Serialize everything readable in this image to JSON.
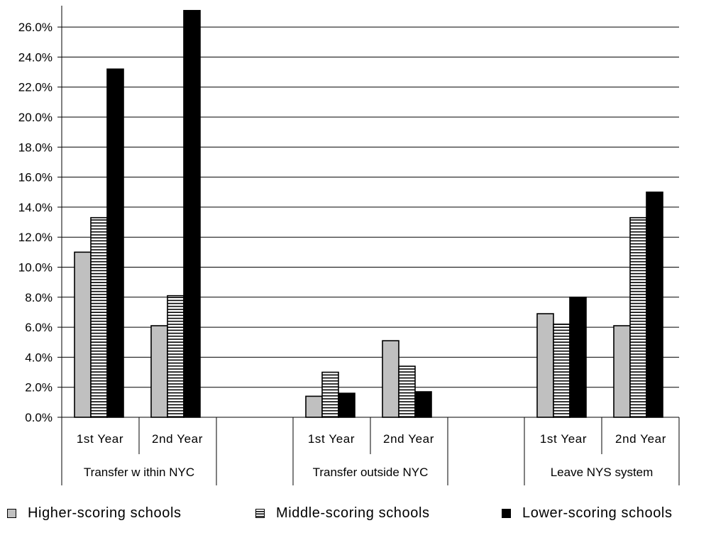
{
  "chart_data": {
    "type": "bar",
    "groups": [
      {
        "label": "Transfer w ithin NYC",
        "subcategories": [
          "1st Year",
          "2nd Year"
        ]
      },
      {
        "label": "Transfer outside NYC",
        "subcategories": [
          "1st Year",
          "2nd Year"
        ]
      },
      {
        "label": "Leave NYS system",
        "subcategories": [
          "1st Year",
          "2nd Year"
        ]
      }
    ],
    "series": [
      {
        "name": "Higher-scoring schools",
        "values": [
          11.0,
          6.1,
          1.4,
          5.1,
          6.9,
          6.1
        ],
        "color": "#c0c0c0"
      },
      {
        "name": "Middle-scoring schools",
        "values": [
          13.3,
          8.1,
          3.0,
          3.4,
          6.2,
          13.3
        ],
        "color": "#ffffff",
        "pattern": "horizontal-stripes"
      },
      {
        "name": "Lower-scoring schools",
        "values": [
          23.2,
          27.1,
          1.6,
          1.7,
          8.0,
          15.0
        ],
        "color": "#000000"
      }
    ],
    "ylim": [
      0,
      27.0
    ],
    "yticks": [
      "0.0%",
      "2.0%",
      "4.0%",
      "6.0%",
      "8.0%",
      "10.0%",
      "12.0%",
      "14.0%",
      "16.0%",
      "18.0%",
      "20.0%",
      "22.0%",
      "24.0%",
      "26.0%"
    ],
    "grid": true,
    "legend_position": "bottom"
  }
}
